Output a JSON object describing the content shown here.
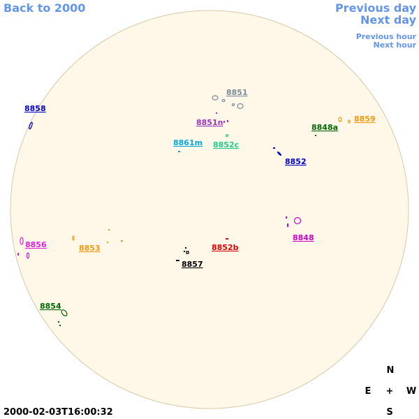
{
  "nav": {
    "back": "Back to 2000",
    "prev_day": "Previous day",
    "next_day": "Next day",
    "prev_hour": "Previous hour",
    "next_hour": "Next hour"
  },
  "regions": [
    {
      "label": "8851",
      "color": "#7a8a9a"
    },
    {
      "label": "8858",
      "color": "#0000cc"
    },
    {
      "label": "8851n",
      "color": "#9933bb"
    },
    {
      "label": "8859",
      "color": "#ee9911"
    },
    {
      "label": "8848a",
      "color": "#006600"
    },
    {
      "label": "8861m",
      "color": "#00aadd"
    },
    {
      "label": "8852c",
      "color": "#22cc88"
    },
    {
      "label": "8852",
      "color": "#0000cc"
    },
    {
      "label": "8848",
      "color": "#cc00cc"
    },
    {
      "label": "8856",
      "color": "#dd22dd"
    },
    {
      "label": "8853",
      "color": "#ee9911"
    },
    {
      "label": "8852b",
      "color": "#dd0000"
    },
    {
      "label": "8857",
      "color": "#000000"
    },
    {
      "label": "8854",
      "color": "#006600"
    }
  ],
  "compass": {
    "n": "N",
    "e": "E",
    "center": "+",
    "w": "W",
    "s": "S"
  },
  "timestamp": "2000-02-03T16:00:32"
}
